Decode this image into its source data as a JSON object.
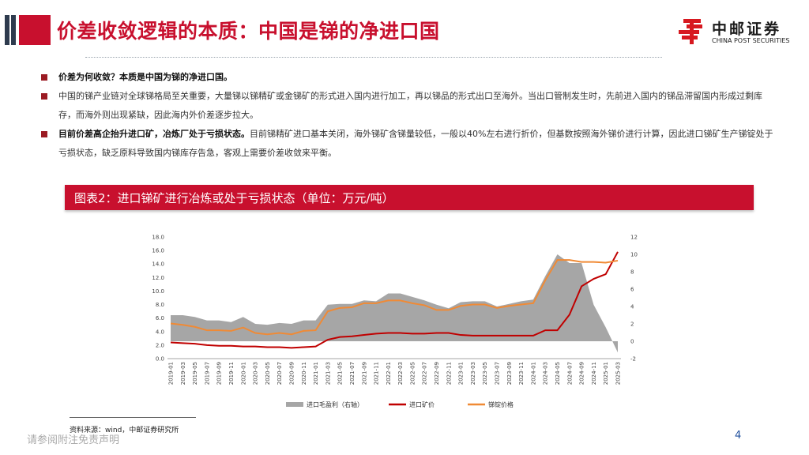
{
  "header": {
    "title": "价差收敛逻辑的本质：中国是锑的净进口国",
    "logo_name": "中邮证券",
    "logo_en": "CHINA POST SECURITIES"
  },
  "bullets": [
    {
      "bold": "价差为何收敛？本质是中国为锑的净进口国。",
      "text": ""
    },
    {
      "bold": "",
      "text": "中国的锑产业链对全球锑格局至关重要，大量锑以锑精矿或金锑矿的形式进入国内进行加工，再以锑品的形式出口至海外。当出口管制发生时，先前进入国内的锑品滞留国内形成过剩库存，而海外则出现紧缺，因此海内外价差逐步拉大。"
    },
    {
      "bold": "目前价差高企抬升进口矿，冶炼厂处于亏损状态。",
      "text": "目前锑精矿进口基本关闭，海外锑矿含锑量较低，一般以40%左右进行折价，但基数按照海外锑价进行计算，因此进口锑矿生产锑锭处于亏损状态，缺乏原料导致国内锑库存告急，客观上需要价差收敛来平衡。"
    }
  ],
  "figure": {
    "title": "图表2：进口锑矿进行冶炼或处于亏损状态（单位：万元/吨）"
  },
  "source": "资料来源：wind，中邮证券研究所",
  "footer": {
    "disclaimer": "请参阅附注免责声明",
    "page": "4"
  },
  "colors": {
    "accent": "#c8102e",
    "margin_area": "#a6a6a6",
    "import_price": "#c00000",
    "ingot_price": "#f08a35"
  },
  "chart_data": {
    "type": "line",
    "title": "",
    "xlabel": "",
    "ylabel": "",
    "y2label": "",
    "grid": false,
    "legend_position": "bottom",
    "ylim": [
      0,
      18
    ],
    "y2lim": [
      -2,
      12
    ],
    "y_ticks": [
      "0.0",
      "2.0",
      "4.0",
      "6.0",
      "8.0",
      "10.0",
      "12.0",
      "14.0",
      "16.0",
      "18.0"
    ],
    "y2_ticks": [
      "-2",
      "0",
      "2",
      "4",
      "6",
      "8",
      "10",
      "12"
    ],
    "x": [
      "2019-01",
      "2019-03",
      "2019-05",
      "2019-07",
      "2019-09",
      "2019-11",
      "2020-01",
      "2020-03",
      "2020-05",
      "2020-07",
      "2020-09",
      "2020-11",
      "2021-01",
      "2021-03",
      "2021-05",
      "2021-07",
      "2021-09",
      "2021-11",
      "2022-01",
      "2022-03",
      "2022-05",
      "2022-07",
      "2022-09",
      "2022-11",
      "2023-01",
      "2023-03",
      "2023-05",
      "2023-07",
      "2023-09",
      "2023-11",
      "2024-01",
      "2024-03",
      "2024-05",
      "2024-07",
      "2024-09",
      "2024-11",
      "2025-01",
      "2025-03"
    ],
    "series": [
      {
        "name": "进口毛盈利（右轴）",
        "kind": "area",
        "axis": "right",
        "values": [
          3.0,
          3.0,
          2.8,
          2.4,
          2.4,
          2.2,
          2.8,
          2.0,
          1.9,
          2.1,
          2.0,
          2.4,
          2.4,
          4.2,
          4.3,
          4.3,
          4.7,
          4.6,
          5.5,
          5.5,
          5.1,
          4.7,
          4.2,
          3.8,
          4.5,
          4.6,
          4.6,
          4.0,
          4.3,
          4.6,
          4.8,
          7.5,
          10.0,
          9.0,
          9.0,
          4.2,
          1.6,
          -1.3
        ]
      },
      {
        "name": "进口矿价",
        "kind": "line",
        "axis": "left",
        "values": [
          2.4,
          2.3,
          2.2,
          2.0,
          1.9,
          1.9,
          1.8,
          1.8,
          1.7,
          1.7,
          1.6,
          1.7,
          1.8,
          2.8,
          3.2,
          3.3,
          3.5,
          3.7,
          3.8,
          3.8,
          3.7,
          3.7,
          3.8,
          3.8,
          3.5,
          3.4,
          3.4,
          3.4,
          3.4,
          3.4,
          3.4,
          4.2,
          4.2,
          6.5,
          10.7,
          11.8,
          12.5,
          15.8
        ]
      },
      {
        "name": "锑锭价格",
        "kind": "line",
        "axis": "left",
        "values": [
          5.2,
          5.0,
          4.7,
          4.2,
          4.2,
          4.1,
          4.6,
          3.8,
          3.6,
          3.8,
          3.6,
          4.1,
          4.2,
          7.0,
          7.5,
          7.6,
          8.2,
          8.2,
          8.6,
          8.6,
          8.2,
          7.9,
          7.2,
          7.2,
          7.8,
          8.0,
          8.0,
          7.5,
          7.8,
          8.0,
          8.2,
          11.6,
          14.6,
          14.6,
          14.3,
          14.3,
          14.2,
          14.5
        ]
      }
    ]
  }
}
